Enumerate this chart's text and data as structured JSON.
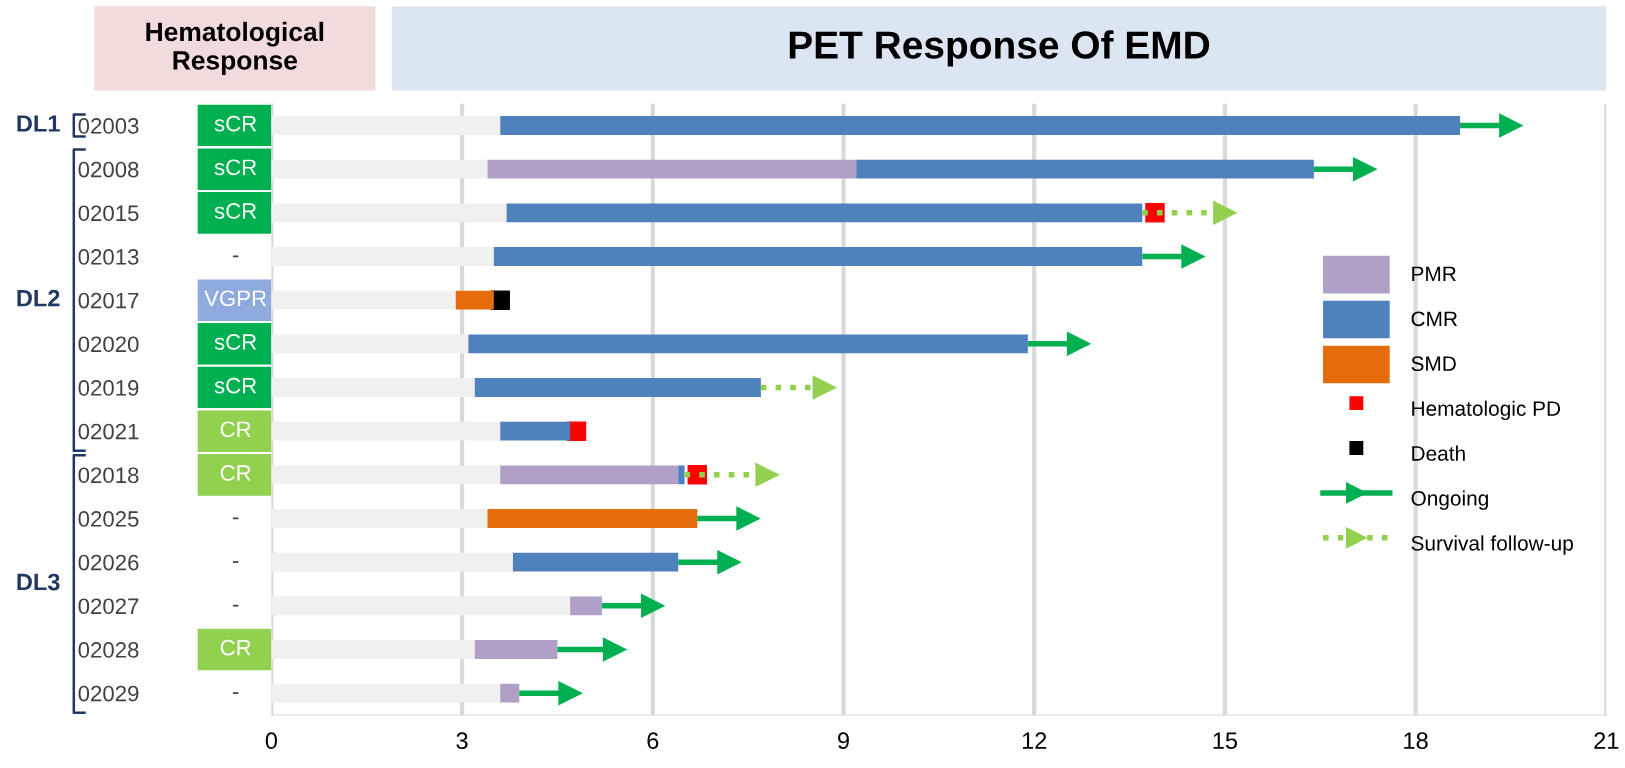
{
  "chart_data": [
    {
      "type": "other",
      "title": "Hematological\nResponse",
      "annotations": [
        "sCR",
        "sCR",
        "sCR",
        "-",
        "VGPR",
        "sCR",
        "sCR",
        "CR",
        "CR",
        "-",
        "-",
        "-",
        "CR",
        "-"
      ],
      "colors": [
        "#00b050",
        "#00b050",
        "#00b050",
        null,
        "#8faadc",
        "#00b050",
        "#00b050",
        "#92d050",
        "#92d050",
        null,
        null,
        null,
        "#92d050",
        null
      ]
    },
    {
      "type": "bar",
      "orientation": "horizontal",
      "stacked": true,
      "title": "PET Response Of EMD",
      "categories": [
        "02003",
        "02008",
        "02015",
        "02013",
        "02017",
        "02020",
        "02019",
        "02021",
        "02018",
        "02025",
        "02026",
        "02027",
        "02028",
        "02029"
      ],
      "xlim": [
        0,
        21
      ],
      "xticks": [
        0,
        3,
        6,
        9,
        12,
        15,
        18,
        21
      ],
      "grid": "x",
      "legend": "right",
      "series": [
        {
          "color": "#f0f0f0",
          "values": [
            3.6,
            3.4,
            3.7,
            3.5,
            2.9,
            3.1,
            3.2,
            3.6,
            3.6,
            3.4,
            3.8,
            4.7,
            3.2,
            3.6
          ]
        },
        {
          "name": "PMR",
          "color": "#b0a0c8",
          "values": [
            null,
            5.8,
            null,
            null,
            null,
            null,
            null,
            null,
            2.8,
            null,
            null,
            0.5,
            1.3,
            0.3
          ]
        },
        {
          "name": "CMR",
          "color": "#4f81bd",
          "values": [
            15.1,
            7.2,
            10.0,
            10.2,
            null,
            8.8,
            4.5,
            1.1,
            0.1,
            null,
            2.6,
            null,
            null,
            null
          ]
        },
        {
          "name": "SMD",
          "color": "#e46c0a",
          "values": [
            null,
            null,
            null,
            null,
            0.6,
            null,
            null,
            null,
            null,
            3.3,
            null,
            null,
            null,
            null
          ]
        },
        {
          "name": "Hematologic PD",
          "type": "scatter",
          "marker": "square",
          "color": "#ff0000",
          "values": [
            null,
            null,
            13.9,
            null,
            null,
            null,
            null,
            4.8,
            6.7,
            null,
            null,
            null,
            null,
            null
          ]
        },
        {
          "name": "Death",
          "type": "scatter",
          "marker": "square",
          "color": "#000000",
          "values": [
            null,
            null,
            null,
            null,
            3.6,
            null,
            null,
            null,
            null,
            null,
            null,
            null,
            null,
            null
          ]
        },
        {
          "name": "Ongoing",
          "type": "scatter",
          "marker": "triangle",
          "line_style": "solid",
          "color": "#00b050",
          "values": [
            19.5,
            17.2,
            null,
            14.5,
            null,
            12.7,
            null,
            null,
            null,
            7.5,
            7.2,
            6.0,
            5.4,
            4.7
          ]
        },
        {
          "name": "Survival follow-up",
          "type": "scatter",
          "marker": "triangle",
          "line_style": "dotted",
          "color": "#92d050",
          "values": [
            null,
            null,
            15.0,
            null,
            null,
            null,
            8.7,
            null,
            7.8,
            null,
            null,
            null,
            null,
            null
          ]
        }
      ],
      "annotations": [
        "DL1",
        "DL2",
        "DL3"
      ]
    }
  ]
}
